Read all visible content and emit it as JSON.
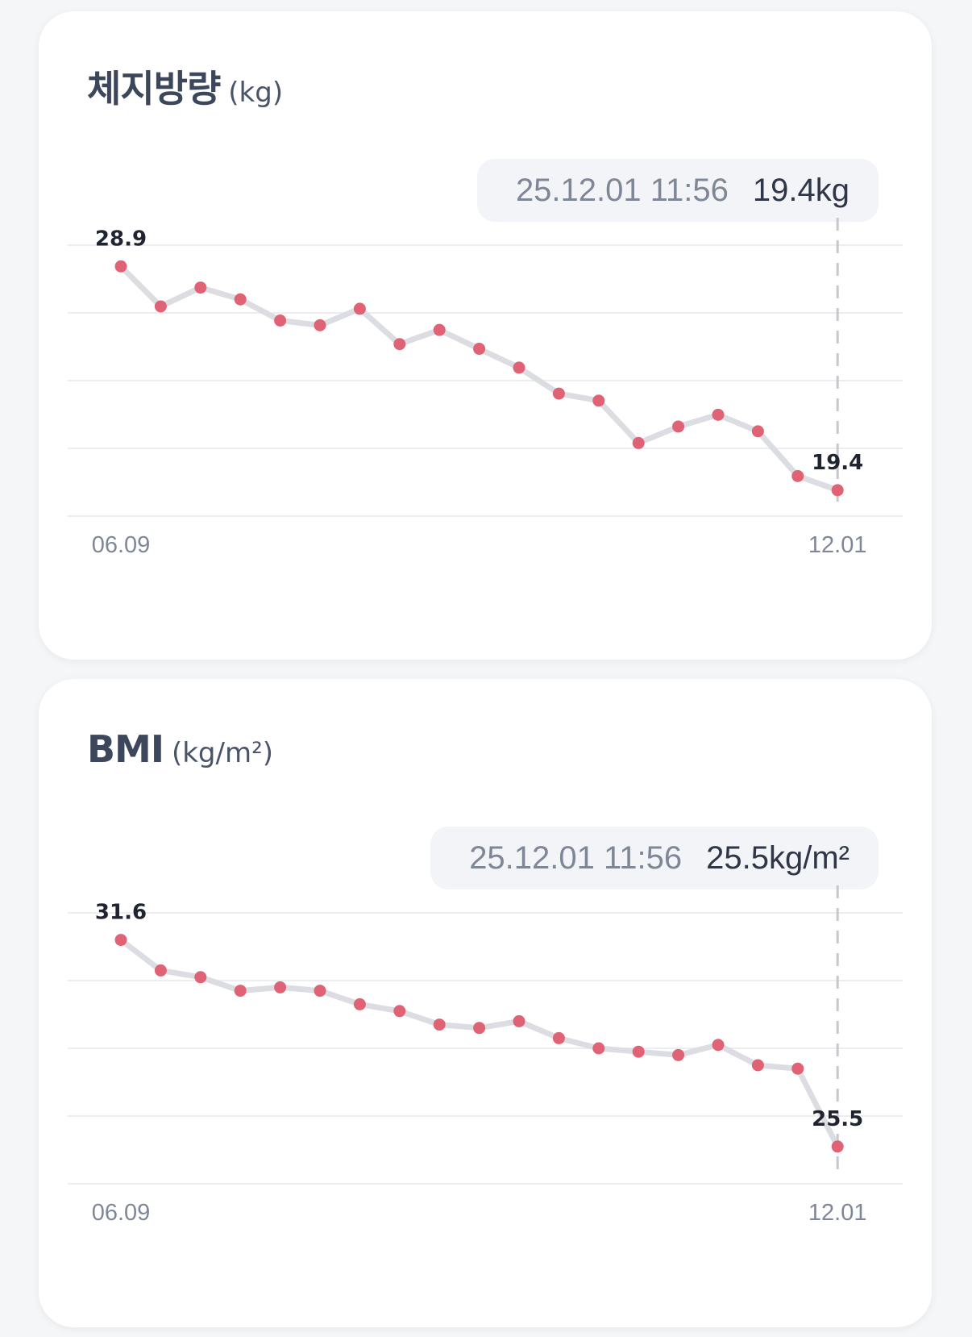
{
  "colors": {
    "point": "#e06375",
    "line": "#dcdde2",
    "grid": "#ebedf0",
    "cursor": "#c6c8cd",
    "label": "#1f2430",
    "tick": "#7f8797"
  },
  "charts": [
    {
      "title": "체지방량",
      "unit": "(kg)",
      "tooltip": {
        "date": "25.12.01 11:56",
        "value": "19.4kg"
      },
      "first_label": "28.9",
      "last_label": "19.4",
      "ticks": {
        "start": "06.09",
        "end": "12.01"
      }
    },
    {
      "title": "BMI",
      "unit": "(kg/m²)",
      "tooltip": {
        "date": "25.12.01 11:56",
        "value": "25.5kg/m²"
      },
      "first_label": "31.6",
      "last_label": "25.5",
      "ticks": {
        "start": "06.09",
        "end": "12.01"
      }
    }
  ],
  "chart_data": [
    {
      "type": "line",
      "title": "체지방량 (kg)",
      "x": [
        "06.09",
        "",
        "",
        "",
        "",
        "",
        "",
        "",
        "",
        "",
        "",
        "",
        "",
        "",
        "",
        "",
        "",
        "",
        "12.01"
      ],
      "series": [
        {
          "values": [
            28.9,
            27.2,
            28.0,
            27.5,
            26.6,
            26.4,
            27.1,
            25.6,
            26.2,
            25.4,
            24.6,
            23.5,
            23.2,
            21.4,
            22.1,
            22.6,
            21.9,
            20.0,
            19.4
          ]
        }
      ],
      "ylim": [
        18.3,
        29.8
      ],
      "xlim": [
        0,
        19.4
      ],
      "grid": true,
      "legend": "none"
    },
    {
      "type": "line",
      "title": "BMI (kg/m²)",
      "x": [
        "06.09",
        "",
        "",
        "",
        "",
        "",
        "",
        "",
        "",
        "",
        "",
        "",
        "",
        "",
        "",
        "",
        "",
        "",
        "12.01"
      ],
      "series": [
        {
          "values": [
            31.6,
            30.7,
            30.5,
            30.1,
            30.2,
            30.1,
            29.7,
            29.5,
            29.1,
            29.0,
            29.2,
            28.7,
            28.4,
            28.3,
            28.2,
            28.5,
            27.9,
            27.8,
            25.5
          ]
        }
      ],
      "ylim": [
        24.4,
        32.4
      ],
      "xlim": [
        0,
        19.4
      ],
      "grid": true,
      "legend": "none"
    }
  ]
}
